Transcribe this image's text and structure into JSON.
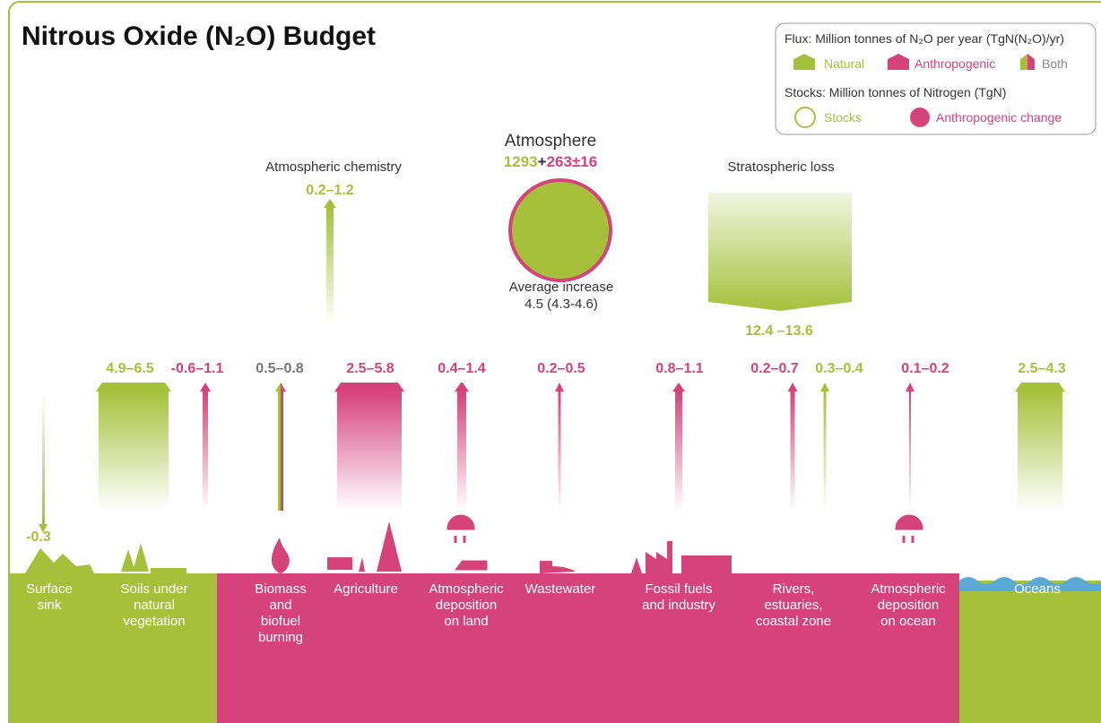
{
  "title": "Nitrous Oxide (N₂O) Budget",
  "legend": {
    "flux_heading": "Flux: Million tonnes of N₂O per year (TgN(N₂O)/yr)",
    "flux_items": [
      "Natural",
      "Anthropogenic",
      "Both"
    ],
    "stocks_heading": "Stocks: Million tonnes of Nitrogen (TgN)",
    "stock_items": [
      "Stocks",
      "Anthropogenic change"
    ]
  },
  "atmosphere": {
    "label": "Atmosphere",
    "natural_stock": "1293",
    "plus": "+",
    "anthropogenic_change": "263",
    "uncertainty": "±16",
    "increase_label": "Average increase",
    "increase_value": "4.5 (4.3-4.6)"
  },
  "sinks": [
    {
      "label": "Atmospheric chemistry",
      "value": "0.2–1.2"
    },
    {
      "label": "Stratospheric loss",
      "value": "12.4 –13.6"
    }
  ],
  "fluxes": [
    {
      "value": "-0.3",
      "kind": "natural"
    },
    {
      "value": "4.9–6.5",
      "kind": "natural"
    },
    {
      "value": "-0.6–1.1",
      "kind": "anthropogenic"
    },
    {
      "value": "0.5–0.8",
      "kind": "both"
    },
    {
      "value": "2.5–5.8",
      "kind": "anthropogenic"
    },
    {
      "value": "0.4–1.4",
      "kind": "anthropogenic"
    },
    {
      "value": "0.2–0.5",
      "kind": "anthropogenic"
    },
    {
      "value": "0.8–1.1",
      "kind": "anthropogenic"
    },
    {
      "value": "0.2–0.7",
      "kind": "anthropogenic"
    },
    {
      "value": "0.3–0.4",
      "kind": "natural"
    },
    {
      "value": "0.1–0.2",
      "kind": "anthropogenic"
    },
    {
      "value": "2.5–4.3",
      "kind": "natural"
    }
  ],
  "sources": [
    {
      "lines": [
        "Surface",
        "sink"
      ]
    },
    {
      "lines": [
        "Soils under",
        "natural",
        "vegetation"
      ]
    },
    {
      "lines": [
        "Biomass",
        "and",
        "biofuel",
        "burning"
      ]
    },
    {
      "lines": [
        "Agriculture"
      ]
    },
    {
      "lines": [
        "Atmospheric",
        "deposition",
        "on land"
      ]
    },
    {
      "lines": [
        "Wastewater"
      ]
    },
    {
      "lines": [
        "Fossil fuels",
        "and industry"
      ]
    },
    {
      "lines": [
        "Rivers,",
        "estuaries,",
        "coastal zone"
      ]
    },
    {
      "lines": [
        "Atmospheric",
        "deposition",
        "on ocean"
      ]
    },
    {
      "lines": [
        "Oceans"
      ]
    }
  ]
}
